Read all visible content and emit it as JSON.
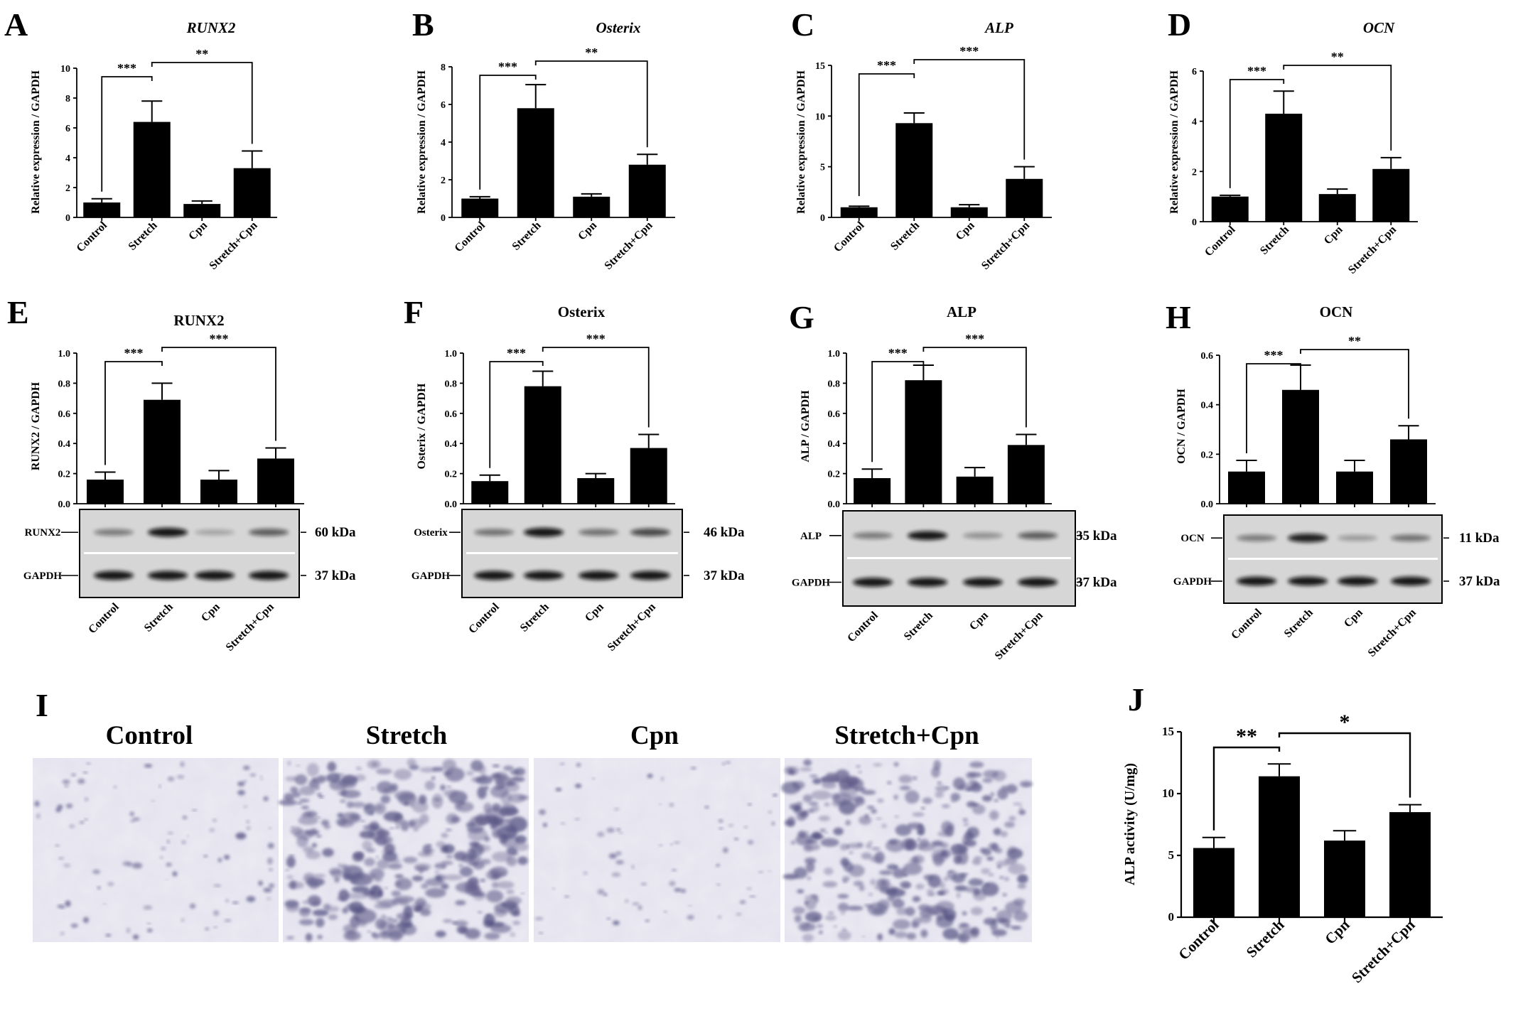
{
  "chart_data": [
    {
      "id": "A",
      "type": "bar",
      "panel_letter": "A",
      "title": "RUNX2",
      "title_italic": true,
      "ylabel": "Relative expression / GAPDH",
      "ylim": [
        0,
        10
      ],
      "yticks": [
        0,
        2,
        4,
        6,
        8,
        10
      ],
      "yticklabels": [
        "0",
        "2",
        "4",
        "6",
        "8",
        "10"
      ],
      "categories": [
        "Control",
        "Stretch",
        "Cpn",
        "Stretch+Cpn"
      ],
      "values": [
        1.0,
        6.4,
        0.9,
        3.3
      ],
      "errors": [
        0.25,
        1.4,
        0.2,
        1.15
      ],
      "significance": [
        {
          "from": 0,
          "to": 1,
          "label": "***"
        },
        {
          "from": 1,
          "to": 3,
          "label": "**"
        }
      ]
    },
    {
      "id": "B",
      "type": "bar",
      "panel_letter": "B",
      "title": "Osterix",
      "title_italic": true,
      "ylabel": "Relative expression / GAPDH",
      "ylim": [
        0,
        8
      ],
      "yticks": [
        0,
        2,
        4,
        6,
        8
      ],
      "yticklabels": [
        "0",
        "2",
        "4",
        "6",
        "8"
      ],
      "categories": [
        "Control",
        "Stretch",
        "Cpn",
        "Stretch+Cpn"
      ],
      "values": [
        1.0,
        5.8,
        1.1,
        2.8
      ],
      "errors": [
        0.1,
        1.25,
        0.15,
        0.55
      ],
      "significance": [
        {
          "from": 0,
          "to": 1,
          "label": "***"
        },
        {
          "from": 1,
          "to": 3,
          "label": "**"
        }
      ]
    },
    {
      "id": "C",
      "type": "bar",
      "panel_letter": "C",
      "title": "ALP",
      "title_italic": true,
      "ylabel": "Relative expression / GAPDH",
      "ylim": [
        0,
        15
      ],
      "yticks": [
        0,
        5,
        10,
        15
      ],
      "yticklabels": [
        "0",
        "5",
        "10",
        "15"
      ],
      "categories": [
        "Control",
        "Stretch",
        "Cpn",
        "Stretch+Cpn"
      ],
      "values": [
        1.0,
        9.3,
        1.0,
        3.8
      ],
      "errors": [
        0.1,
        1.0,
        0.25,
        1.2
      ],
      "significance": [
        {
          "from": 0,
          "to": 1,
          "label": "***"
        },
        {
          "from": 1,
          "to": 3,
          "label": "***"
        }
      ]
    },
    {
      "id": "D",
      "type": "bar",
      "panel_letter": "D",
      "title": "OCN",
      "title_italic": true,
      "ylabel": "Relative expression / GAPDH",
      "ylim": [
        0,
        6
      ],
      "yticks": [
        0,
        2,
        4,
        6
      ],
      "yticklabels": [
        "0",
        "2",
        "4",
        "6"
      ],
      "categories": [
        "Control",
        "Stretch",
        "Cpn",
        "Stretch+Cpn"
      ],
      "values": [
        1.0,
        4.3,
        1.1,
        2.1
      ],
      "errors": [
        0.05,
        0.9,
        0.2,
        0.45
      ],
      "significance": [
        {
          "from": 0,
          "to": 1,
          "label": "***"
        },
        {
          "from": 1,
          "to": 3,
          "label": "**"
        }
      ]
    },
    {
      "id": "E",
      "type": "bar",
      "panel_letter": "E",
      "title": "RUNX2",
      "title_italic": false,
      "ylabel": "RUNX2 / GAPDH",
      "ylim": [
        0,
        1.0
      ],
      "yticks": [
        0,
        0.2,
        0.4,
        0.6,
        0.8,
        1.0
      ],
      "yticklabels": [
        "0.0",
        "0.2",
        "0.4",
        "0.6",
        "0.8",
        "1.0"
      ],
      "categories": [
        "Control",
        "Stretch",
        "Cpn",
        "Stretch+Cpn"
      ],
      "values": [
        0.16,
        0.69,
        0.16,
        0.3
      ],
      "errors": [
        0.05,
        0.11,
        0.06,
        0.07
      ],
      "significance": [
        {
          "from": 0,
          "to": 1,
          "label": "***"
        },
        {
          "from": 1,
          "to": 3,
          "label": "***"
        }
      ],
      "blot": {
        "labels": [
          "RUNX2",
          "GAPDH"
        ],
        "kda": [
          "60 kDa",
          "37 kDa"
        ],
        "intensity": [
          [
            0.45,
            0.95,
            0.25,
            0.6
          ],
          [
            0.95,
            0.95,
            0.95,
            0.95
          ]
        ]
      }
    },
    {
      "id": "F",
      "type": "bar",
      "panel_letter": "F",
      "title": "Osterix",
      "title_italic": false,
      "ylabel": "Osterix / GAPDH",
      "ylim": [
        0,
        1.0
      ],
      "yticks": [
        0,
        0.2,
        0.4,
        0.6,
        0.8,
        1.0
      ],
      "yticklabels": [
        "0.0",
        "0.2",
        "0.4",
        "0.6",
        "0.8",
        "1.0"
      ],
      "categories": [
        "Control",
        "Stretch",
        "Cpn",
        "Stretch+Cpn"
      ],
      "values": [
        0.15,
        0.78,
        0.17,
        0.37
      ],
      "errors": [
        0.04,
        0.1,
        0.03,
        0.09
      ],
      "significance": [
        {
          "from": 0,
          "to": 1,
          "label": "***"
        },
        {
          "from": 1,
          "to": 3,
          "label": "***"
        }
      ],
      "blot": {
        "labels": [
          "Osterix",
          "GAPDH"
        ],
        "kda": [
          "46 kDa",
          "37 kDa"
        ],
        "intensity": [
          [
            0.5,
            0.95,
            0.5,
            0.7
          ],
          [
            0.95,
            0.95,
            0.95,
            0.95
          ]
        ]
      }
    },
    {
      "id": "G",
      "type": "bar",
      "panel_letter": "G",
      "title": "ALP",
      "title_italic": false,
      "ylabel": "ALP / GAPDH",
      "ylim": [
        0,
        1.0
      ],
      "yticks": [
        0,
        0.2,
        0.4,
        0.6,
        0.8,
        1.0
      ],
      "yticklabels": [
        "0.0",
        "0.2",
        "0.4",
        "0.6",
        "0.8",
        "1.0"
      ],
      "categories": [
        "Control",
        "Stretch",
        "Cpn",
        "Stretch+Cpn"
      ],
      "values": [
        0.17,
        0.82,
        0.18,
        0.39
      ],
      "errors": [
        0.06,
        0.1,
        0.06,
        0.07
      ],
      "significance": [
        {
          "from": 0,
          "to": 1,
          "label": "***"
        },
        {
          "from": 1,
          "to": 3,
          "label": "***"
        }
      ],
      "blot": {
        "labels": [
          "ALP",
          "GAPDH"
        ],
        "kda": [
          "35 kDa",
          "37 kDa"
        ],
        "intensity": [
          [
            0.45,
            0.95,
            0.35,
            0.6
          ],
          [
            0.95,
            0.95,
            0.95,
            0.95
          ]
        ]
      }
    },
    {
      "id": "H",
      "type": "bar",
      "panel_letter": "H",
      "title": "OCN",
      "title_italic": false,
      "ylabel": "OCN / GAPDH",
      "ylim": [
        0,
        0.6
      ],
      "yticks": [
        0,
        0.2,
        0.4,
        0.6
      ],
      "yticklabels": [
        "0.0",
        "0.2",
        "0.4",
        "0.6"
      ],
      "categories": [
        "Control",
        "Stretch",
        "Cpn",
        "Stretch+Cpn"
      ],
      "values": [
        0.13,
        0.46,
        0.13,
        0.26
      ],
      "errors": [
        0.045,
        0.1,
        0.045,
        0.055
      ],
      "significance": [
        {
          "from": 0,
          "to": 1,
          "label": "***"
        },
        {
          "from": 1,
          "to": 3,
          "label": "**"
        }
      ],
      "blot": {
        "labels": [
          "OCN",
          "GAPDH"
        ],
        "kda": [
          "11 kDa",
          "37 kDa"
        ],
        "intensity": [
          [
            0.45,
            0.9,
            0.3,
            0.5
          ],
          [
            0.95,
            0.95,
            0.95,
            0.95
          ]
        ]
      }
    },
    {
      "id": "J",
      "type": "bar",
      "panel_letter": "J",
      "title": "",
      "title_italic": false,
      "ylabel": "ALP activity (U/mg)",
      "ylim": [
        0,
        15
      ],
      "yticks": [
        0,
        5,
        10,
        15
      ],
      "yticklabels": [
        "0",
        "5",
        "10",
        "15"
      ],
      "categories": [
        "Control",
        "Stretch",
        "Cpn",
        "Stretch+Cpn"
      ],
      "values": [
        5.6,
        11.4,
        6.2,
        8.5
      ],
      "errors": [
        0.85,
        1.0,
        0.8,
        0.6
      ],
      "significance": [
        {
          "from": 0,
          "to": 1,
          "label": "**"
        },
        {
          "from": 1,
          "to": 3,
          "label": "*"
        }
      ]
    }
  ],
  "panel_i": {
    "letter": "I",
    "labels": [
      "Control",
      "Stretch",
      "Cpn",
      "Stretch+Cpn"
    ],
    "stain_density": [
      0.15,
      0.85,
      0.1,
      0.75
    ]
  }
}
